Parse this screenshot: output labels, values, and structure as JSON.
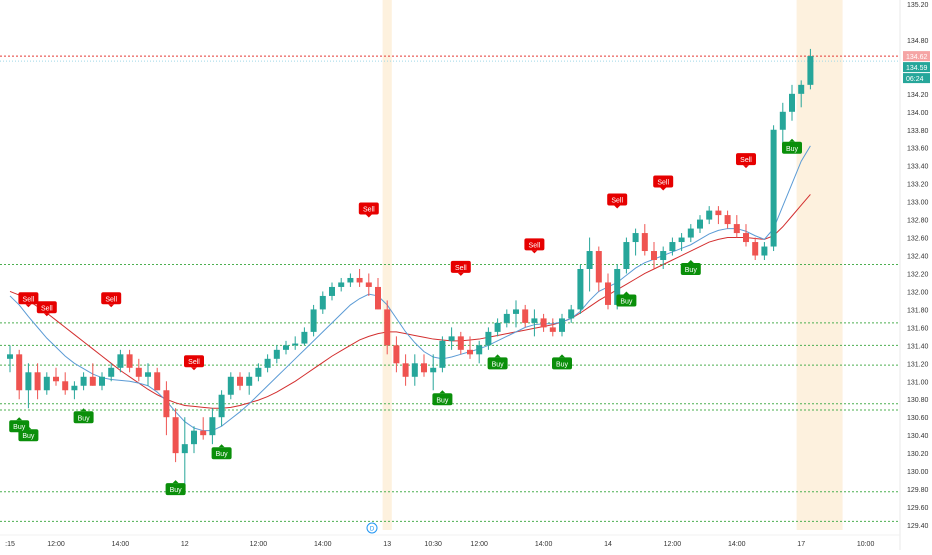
{
  "chart_data": {
    "type": "candlestick",
    "title": "",
    "colors": {
      "up": "#26a69a",
      "down": "#ef5350",
      "ma_fast": "#5b9bd5",
      "ma_slow": "#d32f2f",
      "support_lines": "#4caf50",
      "price_line": "#e53935",
      "session_shade": "#fdf1de",
      "buy_marker": "#0a8f0a",
      "sell_marker": "#e60000"
    },
    "y_axis": {
      "min": 129.4,
      "max": 135.2,
      "ticks": [
        "135.20",
        "134.80",
        "134.40",
        "134.20",
        "134.00",
        "133.80",
        "133.60",
        "133.40",
        "133.20",
        "133.00",
        "132.80",
        "132.60",
        "132.40",
        "132.20",
        "132.00",
        "131.80",
        "131.60",
        "131.40",
        "131.20",
        "131.00",
        "130.80",
        "130.60",
        "130.40",
        "130.20",
        "130.00",
        "129.80",
        "129.60",
        "129.40"
      ]
    },
    "x_axis": {
      "labels": [
        {
          "i": 0,
          "text": ":15"
        },
        {
          "i": 5,
          "text": "12:00"
        },
        {
          "i": 12,
          "text": "14:00"
        },
        {
          "i": 19,
          "text": "12"
        },
        {
          "i": 27,
          "text": "12:00"
        },
        {
          "i": 34,
          "text": "14:00"
        },
        {
          "i": 41,
          "text": "13"
        },
        {
          "i": 46,
          "text": "10:30"
        },
        {
          "i": 51,
          "text": "12:00"
        },
        {
          "i": 58,
          "text": "14:00"
        },
        {
          "i": 65,
          "text": "14"
        },
        {
          "i": 72,
          "text": "12:00"
        },
        {
          "i": 79,
          "text": "14:00"
        },
        {
          "i": 86,
          "text": "17"
        },
        {
          "i": 93,
          "text": "10:00"
        }
      ]
    },
    "scroll_marker": "D",
    "price_labels": {
      "last_top": "134.62",
      "last_mid": "134.59",
      "countdown": "06:24"
    },
    "price_line": 134.62,
    "support_levels": [
      132.3,
      131.65,
      131.4,
      131.18,
      130.75,
      130.68,
      129.77,
      129.44
    ],
    "shaded_sessions": [
      {
        "from": 41,
        "to": 41
      },
      {
        "from": 86,
        "to": 90
      }
    ],
    "candles": [
      [
        131.25,
        131.4,
        131.1,
        131.3
      ],
      [
        131.3,
        131.35,
        130.8,
        130.9
      ],
      [
        130.9,
        131.2,
        130.7,
        131.1
      ],
      [
        131.1,
        131.2,
        130.8,
        130.9
      ],
      [
        130.9,
        131.1,
        130.85,
        131.05
      ],
      [
        131.05,
        131.15,
        130.95,
        131.0
      ],
      [
        131.0,
        131.1,
        130.85,
        130.9
      ],
      [
        130.9,
        131.0,
        130.8,
        130.95
      ],
      [
        130.95,
        131.1,
        130.9,
        131.05
      ],
      [
        131.05,
        131.2,
        130.95,
        130.95
      ],
      [
        130.95,
        131.1,
        130.9,
        131.05
      ],
      [
        131.05,
        131.2,
        131.0,
        131.15
      ],
      [
        131.15,
        131.35,
        131.1,
        131.3
      ],
      [
        131.3,
        131.35,
        131.1,
        131.15
      ],
      [
        131.15,
        131.25,
        131.0,
        131.05
      ],
      [
        131.05,
        131.2,
        130.95,
        131.1
      ],
      [
        131.1,
        131.15,
        130.9,
        130.9
      ],
      [
        130.9,
        131.0,
        130.4,
        130.6
      ],
      [
        130.6,
        130.7,
        130.1,
        130.2
      ],
      [
        130.2,
        130.6,
        129.8,
        130.3
      ],
      [
        130.3,
        130.5,
        130.2,
        130.45
      ],
      [
        130.45,
        130.6,
        130.35,
        130.4
      ],
      [
        130.4,
        130.7,
        130.3,
        130.6
      ],
      [
        130.6,
        130.9,
        130.5,
        130.85
      ],
      [
        130.85,
        131.1,
        130.8,
        131.05
      ],
      [
        131.05,
        131.1,
        130.9,
        130.95
      ],
      [
        130.95,
        131.1,
        130.85,
        131.05
      ],
      [
        131.05,
        131.2,
        131.0,
        131.15
      ],
      [
        131.15,
        131.3,
        131.1,
        131.25
      ],
      [
        131.25,
        131.4,
        131.2,
        131.35
      ],
      [
        131.35,
        131.45,
        131.3,
        131.4
      ],
      [
        131.4,
        131.5,
        131.35,
        131.42
      ],
      [
        131.42,
        131.6,
        131.4,
        131.55
      ],
      [
        131.55,
        131.85,
        131.5,
        131.8
      ],
      [
        131.8,
        132.0,
        131.75,
        131.95
      ],
      [
        131.95,
        132.1,
        131.9,
        132.05
      ],
      [
        132.05,
        132.15,
        132.0,
        132.1
      ],
      [
        132.1,
        132.2,
        132.05,
        132.15
      ],
      [
        132.15,
        132.25,
        132.05,
        132.1
      ],
      [
        132.1,
        132.2,
        131.95,
        132.05
      ],
      [
        132.05,
        132.15,
        131.8,
        131.8
      ],
      [
        131.8,
        131.9,
        131.3,
        131.4
      ],
      [
        131.4,
        131.5,
        131.1,
        131.2
      ],
      [
        131.2,
        131.3,
        130.95,
        131.05
      ],
      [
        131.05,
        131.3,
        130.95,
        131.2
      ],
      [
        131.2,
        131.3,
        131.05,
        131.1
      ],
      [
        131.1,
        131.3,
        130.9,
        131.15
      ],
      [
        131.15,
        131.5,
        131.1,
        131.45
      ],
      [
        131.45,
        131.6,
        131.35,
        131.5
      ],
      [
        131.5,
        131.55,
        131.3,
        131.35
      ],
      [
        131.35,
        131.5,
        131.25,
        131.3
      ],
      [
        131.3,
        131.45,
        131.2,
        131.4
      ],
      [
        131.4,
        131.6,
        131.35,
        131.55
      ],
      [
        131.55,
        131.7,
        131.5,
        131.65
      ],
      [
        131.65,
        131.8,
        131.6,
        131.75
      ],
      [
        131.75,
        131.9,
        131.6,
        131.8
      ],
      [
        131.8,
        131.85,
        131.6,
        131.65
      ],
      [
        131.65,
        131.8,
        131.5,
        131.7
      ],
      [
        131.7,
        131.75,
        131.55,
        131.6
      ],
      [
        131.6,
        131.7,
        131.5,
        131.55
      ],
      [
        131.55,
        131.75,
        131.5,
        131.7
      ],
      [
        131.7,
        131.85,
        131.65,
        131.8
      ],
      [
        131.8,
        132.3,
        131.75,
        132.25
      ],
      [
        132.25,
        132.6,
        132.0,
        132.45
      ],
      [
        132.45,
        132.5,
        132.0,
        132.1
      ],
      [
        132.1,
        132.2,
        131.8,
        131.85
      ],
      [
        131.85,
        132.3,
        131.8,
        132.25
      ],
      [
        132.25,
        132.6,
        132.2,
        132.55
      ],
      [
        132.55,
        132.7,
        132.4,
        132.65
      ],
      [
        132.65,
        132.75,
        132.4,
        132.45
      ],
      [
        132.45,
        132.55,
        132.25,
        132.35
      ],
      [
        132.35,
        132.5,
        132.25,
        132.45
      ],
      [
        132.45,
        132.6,
        132.4,
        132.55
      ],
      [
        132.55,
        132.65,
        132.45,
        132.6
      ],
      [
        132.6,
        132.75,
        132.55,
        132.7
      ],
      [
        132.7,
        132.85,
        132.65,
        132.8
      ],
      [
        132.8,
        132.95,
        132.75,
        132.9
      ],
      [
        132.9,
        132.95,
        132.75,
        132.85
      ],
      [
        132.85,
        132.9,
        132.7,
        132.75
      ],
      [
        132.75,
        132.85,
        132.6,
        132.65
      ],
      [
        132.65,
        132.75,
        132.5,
        132.55
      ],
      [
        132.55,
        132.6,
        132.35,
        132.4
      ],
      [
        132.4,
        132.55,
        132.35,
        132.5
      ],
      [
        132.5,
        133.85,
        132.45,
        133.8
      ],
      [
        133.8,
        134.1,
        133.6,
        134.0
      ],
      [
        134.0,
        134.3,
        133.9,
        134.2
      ],
      [
        134.2,
        134.35,
        134.05,
        134.3
      ],
      [
        134.3,
        134.7,
        134.25,
        134.62
      ]
    ],
    "ma_fast": [
      131.95,
      131.85,
      131.72,
      131.6,
      131.48,
      131.38,
      131.28,
      131.2,
      131.14,
      131.08,
      131.04,
      131.02,
      131.01,
      131.0,
      130.98,
      130.95,
      130.88,
      130.78,
      130.66,
      130.55,
      130.48,
      130.45,
      130.45,
      130.5,
      130.58,
      130.66,
      130.75,
      130.85,
      130.95,
      131.05,
      131.15,
      131.25,
      131.35,
      131.45,
      131.55,
      131.65,
      131.75,
      131.85,
      131.92,
      131.97,
      131.95,
      131.85,
      131.7,
      131.55,
      131.43,
      131.33,
      131.27,
      131.25,
      131.27,
      131.3,
      131.33,
      131.36,
      131.4,
      131.45,
      131.5,
      131.55,
      131.6,
      131.63,
      131.64,
      131.64,
      131.66,
      131.7,
      131.78,
      131.9,
      132.0,
      132.05,
      132.1,
      132.18,
      132.26,
      132.32,
      132.36,
      132.4,
      132.44,
      132.48,
      132.52,
      132.58,
      132.64,
      132.68,
      132.7,
      132.7,
      132.67,
      132.62,
      132.58,
      132.7,
      132.95,
      133.2,
      133.45,
      133.62
    ],
    "ma_slow": [
      132.0,
      131.96,
      131.9,
      131.83,
      131.76,
      131.68,
      131.6,
      131.52,
      131.44,
      131.36,
      131.28,
      131.2,
      131.12,
      131.05,
      130.98,
      130.91,
      130.85,
      130.8,
      130.76,
      130.73,
      130.72,
      130.71,
      130.7,
      130.7,
      130.71,
      130.73,
      130.76,
      130.79,
      130.83,
      130.88,
      130.94,
      131.0,
      131.07,
      131.14,
      131.21,
      131.28,
      131.34,
      131.4,
      131.46,
      131.5,
      131.53,
      131.55,
      131.55,
      131.53,
      131.51,
      131.49,
      131.47,
      131.46,
      131.45,
      131.45,
      131.46,
      131.47,
      131.49,
      131.51,
      131.53,
      131.55,
      131.57,
      131.59,
      131.61,
      131.63,
      131.66,
      131.7,
      131.76,
      131.83,
      131.9,
      131.96,
      132.02,
      132.08,
      132.14,
      132.2,
      132.25,
      132.3,
      132.35,
      132.4,
      132.45,
      132.5,
      132.55,
      132.58,
      132.6,
      132.6,
      132.6,
      132.59,
      132.58,
      132.62,
      132.72,
      132.84,
      132.96,
      133.08
    ],
    "signals": [
      {
        "type": "sell",
        "i": 2,
        "label": "Sell"
      },
      {
        "type": "sell",
        "i": 4,
        "label": "Sell"
      },
      {
        "type": "buy",
        "i": 2,
        "label": "Buy"
      },
      {
        "type": "buy",
        "i": 1,
        "label": "Buy"
      },
      {
        "type": "buy",
        "i": 8,
        "label": "Buy"
      },
      {
        "type": "sell",
        "i": 11,
        "label": "Sell"
      },
      {
        "type": "sell",
        "i": 20,
        "label": "Sell"
      },
      {
        "type": "buy",
        "i": 18,
        "label": "Buy"
      },
      {
        "type": "buy",
        "i": 23,
        "label": "Buy"
      },
      {
        "type": "sell",
        "i": 39,
        "label": "Sell"
      },
      {
        "type": "buy",
        "i": 47,
        "label": "Buy"
      },
      {
        "type": "sell",
        "i": 49,
        "label": "Sell"
      },
      {
        "type": "buy",
        "i": 53,
        "label": "Buy"
      },
      {
        "type": "sell",
        "i": 57,
        "label": "Sell"
      },
      {
        "type": "buy",
        "i": 60,
        "label": "Buy"
      },
      {
        "type": "sell",
        "i": 66,
        "label": "Sell"
      },
      {
        "type": "buy",
        "i": 67,
        "label": "Buy"
      },
      {
        "type": "sell",
        "i": 71,
        "label": "Sell"
      },
      {
        "type": "buy",
        "i": 74,
        "label": "Buy"
      },
      {
        "type": "sell",
        "i": 80,
        "label": "Sell"
      },
      {
        "type": "buy",
        "i": 85,
        "label": "Buy"
      }
    ]
  }
}
